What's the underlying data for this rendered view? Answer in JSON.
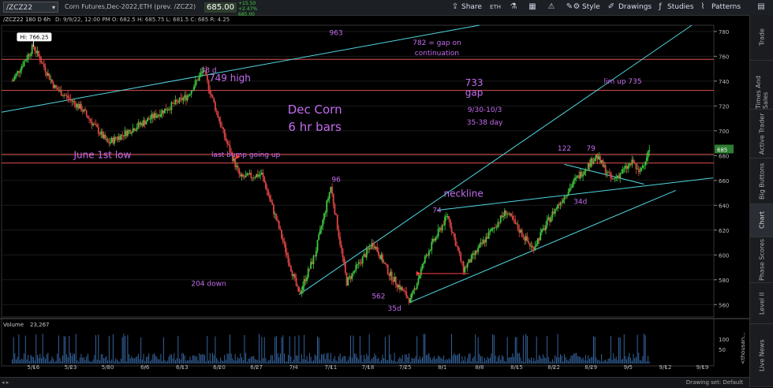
{
  "toolbar": {
    "symbol": "/ZCZ22",
    "description": "Corn Futures,Dec-2022,ETH (prev. /ZCZ2)",
    "last_price": "685.00",
    "net_change": "+15.50",
    "pct_change": "+2.47%",
    "tick_price": "685.00",
    "share": "Share",
    "style": "Style",
    "drawings": "Drawings",
    "studies": "Studies",
    "patterns": "Patterns",
    "icons": [
      "share-icon",
      "eth-icon",
      "beaker-icon",
      "calendar-icon",
      "alert-icon",
      "edit-icon",
      "style-gear-icon",
      "drawings-icon",
      "studies-icon",
      "patterns-icon"
    ]
  },
  "infobar": {
    "label": "/ZCZ22 180 D 6h",
    "ohlc": "D: 9/9/22, 12:00 PM   O: 682.5   H: 685.75   L: 681.5   C: 685   R: 4.25"
  },
  "right_tabs": [
    "Trade",
    "Times And Sales",
    "Active Trader",
    "Big Buttons",
    "Chart",
    "Phase Scores",
    "Level II",
    "Live News"
  ],
  "active_tab": "Chart",
  "status": {
    "drawing_set": "Drawing set: Default"
  },
  "chart_data": {
    "type": "candlestick",
    "timeframe": "180 D 6h",
    "y_ticks": [
      560,
      580,
      600,
      620,
      640,
      660,
      680,
      700,
      720,
      740,
      760,
      780
    ],
    "ylim": [
      550,
      785
    ],
    "current_price_tag": "685",
    "x_ticks": [
      "5/16",
      "5/23",
      "5/30",
      "6/6",
      "6/13",
      "6/20",
      "6/27",
      "7/4",
      "7/11",
      "7/18",
      "7/25",
      "8/1",
      "8/8",
      "8/15",
      "8/22",
      "8/29",
      "9/5",
      "9/12",
      "9/19"
    ],
    "hi_label": "Hi: 766.25",
    "price_path": [
      {
        "x": "5/12",
        "y": 740
      },
      {
        "x": "5/16",
        "y": 768
      },
      {
        "x": "5/20",
        "y": 735
      },
      {
        "x": "5/25",
        "y": 718
      },
      {
        "x": "5/30",
        "y": 690
      },
      {
        "x": "6/3",
        "y": 700
      },
      {
        "x": "6/9",
        "y": 715
      },
      {
        "x": "6/14",
        "y": 728
      },
      {
        "x": "6/17",
        "y": 749
      },
      {
        "x": "6/21",
        "y": 695
      },
      {
        "x": "6/24",
        "y": 662
      },
      {
        "x": "6/28",
        "y": 665
      },
      {
        "x": "7/1",
        "y": 625
      },
      {
        "x": "7/5",
        "y": 568
      },
      {
        "x": "7/8",
        "y": 600
      },
      {
        "x": "7/11",
        "y": 655
      },
      {
        "x": "7/14",
        "y": 578
      },
      {
        "x": "7/19",
        "y": 610
      },
      {
        "x": "7/22",
        "y": 585
      },
      {
        "x": "7/26",
        "y": 563
      },
      {
        "x": "7/29",
        "y": 600
      },
      {
        "x": "8/2",
        "y": 632
      },
      {
        "x": "8/5",
        "y": 588
      },
      {
        "x": "8/10",
        "y": 618
      },
      {
        "x": "8/13",
        "y": 635
      },
      {
        "x": "8/18",
        "y": 605
      },
      {
        "x": "8/22",
        "y": 635
      },
      {
        "x": "8/26",
        "y": 660
      },
      {
        "x": "8/30",
        "y": 680
      },
      {
        "x": "9/2",
        "y": 660
      },
      {
        "x": "9/6",
        "y": 675
      },
      {
        "x": "9/7",
        "y": 665
      },
      {
        "x": "9/9",
        "y": 685
      }
    ],
    "volume": {
      "label": "Volume",
      "value": "23,267",
      "y_ticks": [
        "100",
        "50"
      ],
      "unit": "<thousan..."
    },
    "horizontal_lines": [
      {
        "y": 757.5,
        "color": "#e05050"
      },
      {
        "y": 732.5,
        "color": "#e05050"
      },
      {
        "y": 681,
        "color": "#e05050"
      },
      {
        "y": 674,
        "color": "#e05050"
      }
    ],
    "trendlines": [
      {
        "from": {
          "x": "5/10",
          "y": 715
        },
        "to": {
          "x": "8/8",
          "y": 785
        },
        "color": "#4fd6e0"
      },
      {
        "from": {
          "x": "7/5",
          "y": 568
        },
        "to": {
          "x": "9/17",
          "y": 785
        },
        "color": "#4fd6e0"
      },
      {
        "from": {
          "x": "7/26",
          "y": 562
        },
        "to": {
          "x": "9/14",
          "y": 652
        },
        "color": "#4fd6e0"
      },
      {
        "from": {
          "x": "7/31",
          "y": 636
        },
        "to": {
          "x": "9/21",
          "y": 662
        },
        "color": "#4fd6e0"
      },
      {
        "from": {
          "x": "8/24",
          "y": 673
        },
        "to": {
          "x": "9/8",
          "y": 657
        },
        "color": "#4fd6e0"
      }
    ],
    "annotations": [
      {
        "text": "963",
        "x": "7/12",
        "y": 777,
        "color": "#c56cf0",
        "size": 9
      },
      {
        "text": "782 = gap on",
        "x": "7/31",
        "y": 769,
        "color": "#c56cf0",
        "size": 9
      },
      {
        "text": "continuation",
        "x": "7/31",
        "y": 761,
        "color": "#c56cf0",
        "size": 9
      },
      {
        "text": "38 d",
        "x": "6/18",
        "y": 747,
        "color": "#c56cf0",
        "size": 9
      },
      {
        "text": "749 high",
        "x": "6/22",
        "y": 740,
        "color": "#c56cf0",
        "size": 12
      },
      {
        "text": "733",
        "x": "8/7",
        "y": 736,
        "color": "#c56cf0",
        "size": 12
      },
      {
        "text": "gap",
        "x": "8/7",
        "y": 728,
        "color": "#c56cf0",
        "size": 12
      },
      {
        "text": "lim up 735",
        "x": "9/4",
        "y": 738,
        "color": "#c56cf0",
        "size": 9
      },
      {
        "text": "Dec Corn",
        "x": "7/8",
        "y": 714,
        "color": "#c56cf0",
        "size": 15
      },
      {
        "text": "6 hr bars",
        "x": "7/8",
        "y": 700,
        "color": "#c56cf0",
        "size": 15
      },
      {
        "text": "9/30-10/3",
        "x": "8/9",
        "y": 715,
        "color": "#c56cf0",
        "size": 9
      },
      {
        "text": "35-38 day",
        "x": "8/9",
        "y": 705,
        "color": "#c56cf0",
        "size": 9
      },
      {
        "text": "122",
        "x": "8/24",
        "y": 684,
        "color": "#c56cf0",
        "size": 9
      },
      {
        "text": "79",
        "x": "8/29",
        "y": 684,
        "color": "#c56cf0",
        "size": 9
      },
      {
        "text": "June 1st low",
        "x": "5/29",
        "y": 678,
        "color": "#c56cf0",
        "size": 12
      },
      {
        "text": "last bump going up",
        "x": "6/25",
        "y": 679,
        "color": "#c56cf0",
        "size": 9
      },
      {
        "text": "96",
        "x": "7/12",
        "y": 659,
        "color": "#c56cf0",
        "size": 9
      },
      {
        "text": "neckline",
        "x": "8/5",
        "y": 647,
        "color": "#c56cf0",
        "size": 12
      },
      {
        "text": "34d",
        "x": "8/27",
        "y": 641,
        "color": "#c56cf0",
        "size": 9
      },
      {
        "text": "74",
        "x": "7/31",
        "y": 634,
        "color": "#c56cf0",
        "size": 9
      },
      {
        "text": "204 down",
        "x": "6/18",
        "y": 575,
        "color": "#c56cf0",
        "size": 9
      },
      {
        "text": "562",
        "x": "7/20",
        "y": 565,
        "color": "#c56cf0",
        "size": 9
      },
      {
        "text": "35d",
        "x": "7/23",
        "y": 555,
        "color": "#c56cf0",
        "size": 9
      }
    ]
  }
}
